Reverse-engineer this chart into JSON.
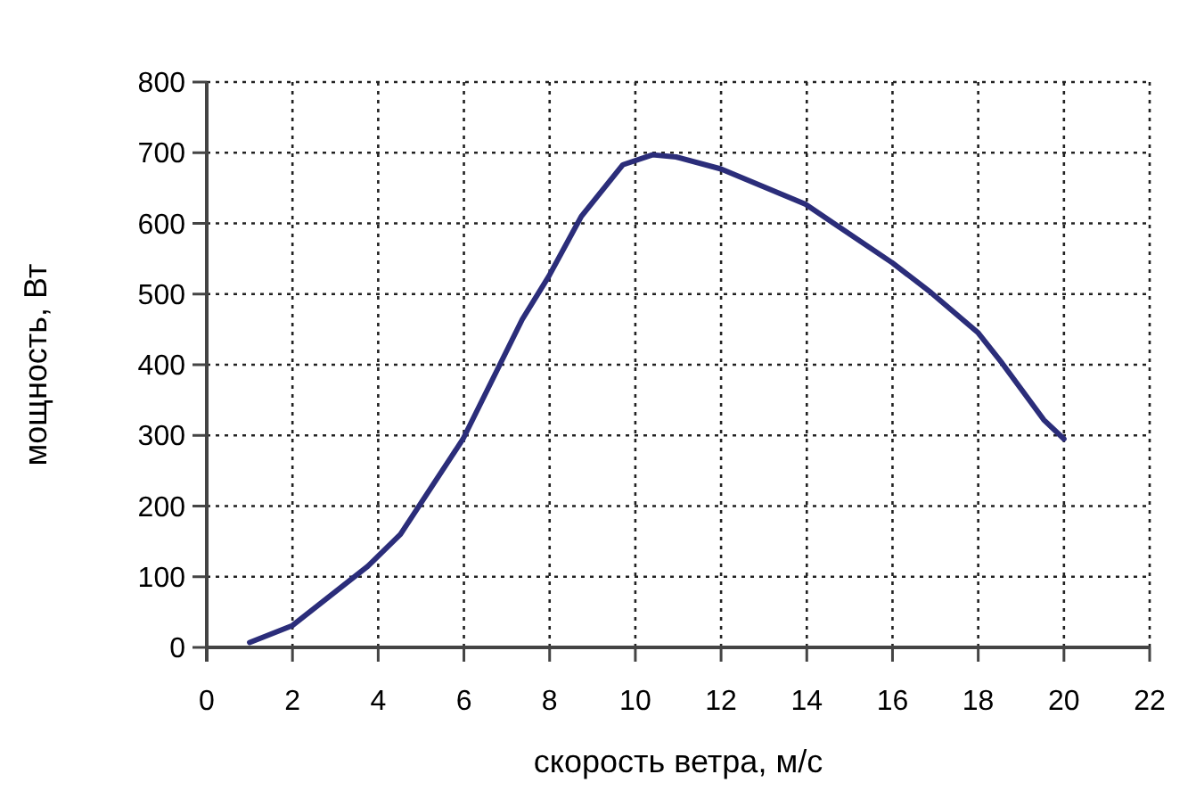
{
  "chart_data": {
    "type": "line",
    "xlabel": "скорость ветра, м/с",
    "ylabel": "мощность, Вт",
    "x": [
      1,
      2,
      3.76,
      4.52,
      5.98,
      7.36,
      7.98,
      8.74,
      9.71,
      10.4,
      10.95,
      12,
      13.97,
      16,
      16.9,
      18,
      18.56,
      19.53,
      20
    ],
    "series": [
      {
        "color": "#2b2d7a",
        "values": [
          7,
          31,
          115,
          160,
          295,
          464,
          525,
          610,
          683,
          697,
          694,
          677,
          627,
          544,
          502,
          445,
          402,
          322,
          295
        ]
      }
    ],
    "xlim": [
      0,
      22
    ],
    "xticks": [
      0,
      2,
      4,
      6,
      8,
      10,
      12,
      14,
      16,
      18,
      20,
      22
    ],
    "ylim": [
      0,
      800
    ],
    "yticks": [
      0,
      100,
      200,
      300,
      400,
      500,
      600,
      700,
      800
    ],
    "grid": true,
    "marker": "none",
    "line_style": "solid"
  }
}
